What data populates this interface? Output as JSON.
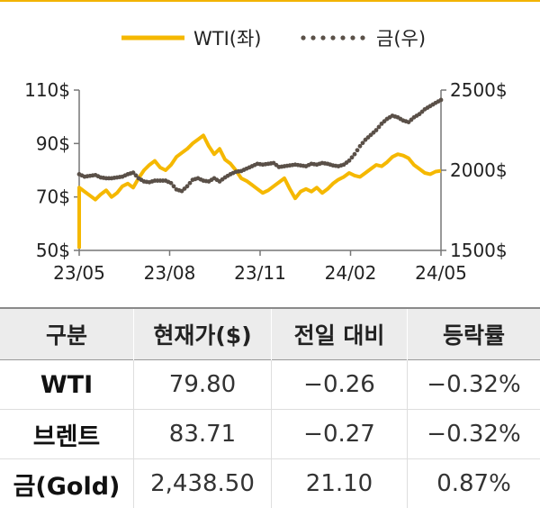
{
  "chart_data": {
    "type": "line",
    "x_ticks": [
      "23/05",
      "23/08",
      "23/11",
      "24/02",
      "24/05"
    ],
    "y_left_ticks": [
      "110$",
      "90$",
      "70$",
      "50$"
    ],
    "y_right_ticks": [
      "2500$",
      "2000$",
      "1500$"
    ],
    "y_left_lim": [
      50,
      110
    ],
    "y_right_lim": [
      1500,
      2500
    ],
    "legend_position": "top",
    "series": [
      {
        "name": "WTI(좌)",
        "axis": "left",
        "color": "#f5b800",
        "style": "solid",
        "values": [
          73.5,
          72.0,
          70.5,
          69.0,
          71.0,
          72.5,
          70.0,
          71.5,
          74.0,
          75.0,
          73.5,
          77.0,
          80.0,
          82.0,
          83.5,
          81.0,
          80.0,
          82.0,
          85.0,
          86.5,
          88.0,
          90.0,
          91.5,
          93.0,
          89.0,
          86.0,
          88.0,
          84.0,
          82.5,
          80.0,
          77.0,
          76.0,
          74.5,
          73.0,
          71.5,
          72.5,
          74.0,
          75.5,
          77.0,
          73.0,
          69.5,
          72.0,
          73.0,
          72.0,
          73.5,
          71.5,
          73.0,
          75.0,
          76.5,
          77.5,
          79.0,
          78.0,
          77.5,
          79.0,
          80.5,
          82.0,
          81.5,
          83.0,
          85.0,
          86.0,
          85.5,
          84.5,
          82.0,
          80.5,
          79.0,
          78.5,
          79.5,
          79.8
        ]
      },
      {
        "name": "금(우)",
        "axis": "right",
        "color": "#5a5048",
        "style": "dotted",
        "values": [
          1975,
          1960,
          1965,
          1970,
          1955,
          1950,
          1950,
          1955,
          1960,
          1975,
          1985,
          1950,
          1930,
          1925,
          1935,
          1935,
          1935,
          1920,
          1880,
          1870,
          1900,
          1940,
          1950,
          1935,
          1930,
          1950,
          1930,
          1955,
          1975,
          1990,
          1995,
          2010,
          2025,
          2040,
          2035,
          2040,
          2045,
          2020,
          2025,
          2030,
          2035,
          2030,
          2025,
          2040,
          2035,
          2045,
          2040,
          2030,
          2025,
          2035,
          2060,
          2100,
          2150,
          2190,
          2220,
          2250,
          2290,
          2320,
          2340,
          2330,
          2310,
          2300,
          2330,
          2350,
          2380,
          2400,
          2420,
          2438.5
        ]
      }
    ]
  },
  "table": {
    "headers": [
      "구분",
      "현재가($)",
      "전일 대비",
      "등락률"
    ],
    "rows": [
      [
        "WTI",
        "79.80",
        "−0.26",
        "−0.32%"
      ],
      [
        "브렌트",
        "83.71",
        "−0.27",
        "−0.32%"
      ],
      [
        "금(Gold)",
        "2,438.50",
        "21.10",
        "0.87%"
      ]
    ]
  }
}
